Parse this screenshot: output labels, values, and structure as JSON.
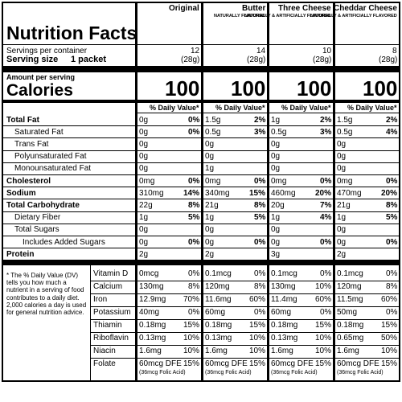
{
  "header": {
    "title": "Nutrition Facts",
    "servings_label": "Servings per container",
    "serving_size_label": "Serving size",
    "serving_size": "1 packet",
    "amount_label": "Amount per serving",
    "calories_label": "Calories"
  },
  "nutrient_rows": [
    {
      "label": "Total Fat",
      "bold": true,
      "indent": 0
    },
    {
      "label": "Saturated Fat",
      "bold": false,
      "indent": 1
    },
    {
      "label": "Trans Fat",
      "bold": false,
      "indent": 1
    },
    {
      "label": "Polyunsaturated Fat",
      "bold": false,
      "indent": 1
    },
    {
      "label": "Monounsaturated Fat",
      "bold": false,
      "indent": 1
    },
    {
      "label": "Cholesterol",
      "bold": true,
      "indent": 0
    },
    {
      "label": "Sodium",
      "bold": true,
      "indent": 0
    },
    {
      "label": "Total Carbohydrate",
      "bold": true,
      "indent": 0
    },
    {
      "label": "Dietary Fiber",
      "bold": false,
      "indent": 1
    },
    {
      "label": "Total Sugars",
      "bold": false,
      "indent": 1
    },
    {
      "label": "Includes Added Sugars",
      "bold": false,
      "indent": 2
    },
    {
      "label": "Protein",
      "bold": true,
      "indent": 0
    }
  ],
  "footnote": "* The % Daily Value (DV) tells you how much a nutrient in a serving of food contributes to a daily diet. 2,000 calories a day is used for general nutrition advice.",
  "vitamin_rows": [
    "Vitamin D",
    "Calcium",
    "Iron",
    "Potassium",
    "Thiamin",
    "Riboflavin",
    "Niacin",
    "Folate"
  ],
  "products": [
    {
      "name": "Original",
      "servings": "12",
      "weight": "(28g)",
      "calories": "100",
      "dv_header": "% Daily Value*",
      "nutrients": [
        {
          "amount": "0g",
          "dv": "0%"
        },
        {
          "amount": "0g",
          "dv": "0%"
        },
        {
          "amount": "0g"
        },
        {
          "amount": "0g"
        },
        {
          "amount": "0g"
        },
        {
          "amount": "0mg",
          "dv": "0%"
        },
        {
          "amount": "310mg",
          "dv": "14%"
        },
        {
          "amount": "22g",
          "dv": "8%"
        },
        {
          "amount": "1g",
          "dv": "5%"
        },
        {
          "amount": "0g"
        },
        {
          "amount": "0g",
          "dv": "0%"
        },
        {
          "amount": "2g"
        }
      ],
      "vitamins": [
        {
          "amount": "0mcg",
          "dv": "0%"
        },
        {
          "amount": "130mg",
          "dv": "8%"
        },
        {
          "amount": "12.9mg",
          "dv": "70%"
        },
        {
          "amount": "40mg",
          "dv": "0%"
        },
        {
          "amount": "0.18mg",
          "dv": "15%"
        },
        {
          "amount": "0.13mg",
          "dv": "10%"
        },
        {
          "amount": "1.6mg",
          "dv": "10%"
        },
        {
          "amount": "60mcg DFE",
          "dv": "15%"
        }
      ],
      "folic": "(36mcg Folic Acid)"
    },
    {
      "name": "Butter",
      "note": "NATURALLY FLAVORED",
      "servings": "14",
      "weight": "(28g)",
      "calories": "100",
      "dv_header": "% Daily Value*",
      "nutrients": [
        {
          "amount": "1.5g",
          "dv": "2%"
        },
        {
          "amount": "0.5g",
          "dv": "3%"
        },
        {
          "amount": "0g"
        },
        {
          "amount": "0g"
        },
        {
          "amount": "1g"
        },
        {
          "amount": "0mg",
          "dv": "0%"
        },
        {
          "amount": "340mg",
          "dv": "15%"
        },
        {
          "amount": "21g",
          "dv": "8%"
        },
        {
          "amount": "1g",
          "dv": "5%"
        },
        {
          "amount": "0g"
        },
        {
          "amount": "0g",
          "dv": "0%"
        },
        {
          "amount": "2g"
        }
      ],
      "vitamins": [
        {
          "amount": "0.1mcg",
          "dv": "0%"
        },
        {
          "amount": "120mg",
          "dv": "8%"
        },
        {
          "amount": "11.6mg",
          "dv": "60%"
        },
        {
          "amount": "60mg",
          "dv": "0%"
        },
        {
          "amount": "0.18mg",
          "dv": "15%"
        },
        {
          "amount": "0.13mg",
          "dv": "10%"
        },
        {
          "amount": "1.6mg",
          "dv": "10%"
        },
        {
          "amount": "60mcg DFE",
          "dv": "15%"
        }
      ],
      "folic": "(36mcg Folic Acid)"
    },
    {
      "name": "Three Cheese",
      "note": "NATURALLY & ARTIFICIALLY FLAVORED",
      "servings": "10",
      "weight": "(28g)",
      "calories": "100",
      "dv_header": "% Daily Value*",
      "nutrients": [
        {
          "amount": "1g",
          "dv": "2%"
        },
        {
          "amount": "0.5g",
          "dv": "3%"
        },
        {
          "amount": "0g"
        },
        {
          "amount": "0g"
        },
        {
          "amount": "0g"
        },
        {
          "amount": "0mg",
          "dv": "0%"
        },
        {
          "amount": "460mg",
          "dv": "20%"
        },
        {
          "amount": "20g",
          "dv": "7%"
        },
        {
          "amount": "1g",
          "dv": "4%"
        },
        {
          "amount": "0g"
        },
        {
          "amount": "0g",
          "dv": "0%"
        },
        {
          "amount": "3g"
        }
      ],
      "vitamins": [
        {
          "amount": "0.1mcg",
          "dv": "0%"
        },
        {
          "amount": "130mg",
          "dv": "10%"
        },
        {
          "amount": "11.4mg",
          "dv": "60%"
        },
        {
          "amount": "60mg",
          "dv": "0%"
        },
        {
          "amount": "0.18mg",
          "dv": "15%"
        },
        {
          "amount": "0.13mg",
          "dv": "10%"
        },
        {
          "amount": "1.6mg",
          "dv": "10%"
        },
        {
          "amount": "60mcg DFE",
          "dv": "15%"
        }
      ],
      "folic": "(36mcg Folic Acid)"
    },
    {
      "name": "Cheddar Cheese",
      "note": "NATURALLY & ARTIFICIALLY FLAVORED",
      "servings": "8",
      "weight": "(28g)",
      "calories": "100",
      "dv_header": "% Daily Value*",
      "nutrients": [
        {
          "amount": "1.5g",
          "dv": "2%"
        },
        {
          "amount": "0.5g",
          "dv": "4%"
        },
        {
          "amount": "0g"
        },
        {
          "amount": "0g"
        },
        {
          "amount": "0g"
        },
        {
          "amount": "0mg",
          "dv": "0%"
        },
        {
          "amount": "470mg",
          "dv": "20%"
        },
        {
          "amount": "21g",
          "dv": "8%"
        },
        {
          "amount": "1g",
          "dv": "5%"
        },
        {
          "amount": "0g"
        },
        {
          "amount": "0g",
          "dv": "0%"
        },
        {
          "amount": "2g"
        }
      ],
      "vitamins": [
        {
          "amount": "0.1mcg",
          "dv": "0%"
        },
        {
          "amount": "120mg",
          "dv": "8%"
        },
        {
          "amount": "11.5mg",
          "dv": "60%"
        },
        {
          "amount": "50mg",
          "dv": "0%"
        },
        {
          "amount": "0.18mg",
          "dv": "15%"
        },
        {
          "amount": "0.65mg",
          "dv": "50%"
        },
        {
          "amount": "1.6mg",
          "dv": "10%"
        },
        {
          "amount": "60mcg DFE",
          "dv": "15%"
        }
      ],
      "folic": "(36mcg Folic Acid)"
    }
  ]
}
